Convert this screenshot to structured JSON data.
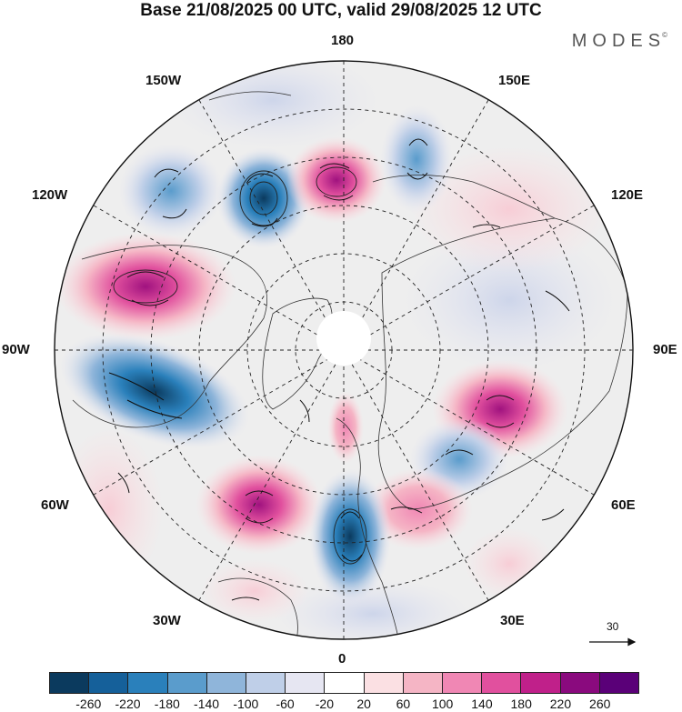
{
  "title": "Base 21/08/2025 00 UTC, valid 29/08/2025 12 UTC",
  "brand": "MODES",
  "brand_mark": "©",
  "lon_labels": {
    "n180": "180",
    "w150": "150W",
    "e150": "150E",
    "w120": "120W",
    "e120": "120E",
    "w90": "90W",
    "e90": "90E",
    "w60": "60W",
    "e60": "60E",
    "w30": "30W",
    "e30": "30E",
    "s0": "0"
  },
  "vector_reference": "30",
  "colorbar": {
    "ticks": [
      "-260",
      "-220",
      "-180",
      "-140",
      "-100",
      "-60",
      "-20",
      "20",
      "60",
      "100",
      "140",
      "180",
      "220",
      "260"
    ],
    "colors": [
      "#0b3a5e",
      "#15609a",
      "#2a80bb",
      "#5a9ccc",
      "#8fb5da",
      "#bfcfe8",
      "#e6e6f2",
      "#ffffff",
      "#fbe0e3",
      "#f5b5c5",
      "#f087b4",
      "#e1509e",
      "#c0208a",
      "#8a0a7e",
      "#5a0078"
    ]
  }
}
